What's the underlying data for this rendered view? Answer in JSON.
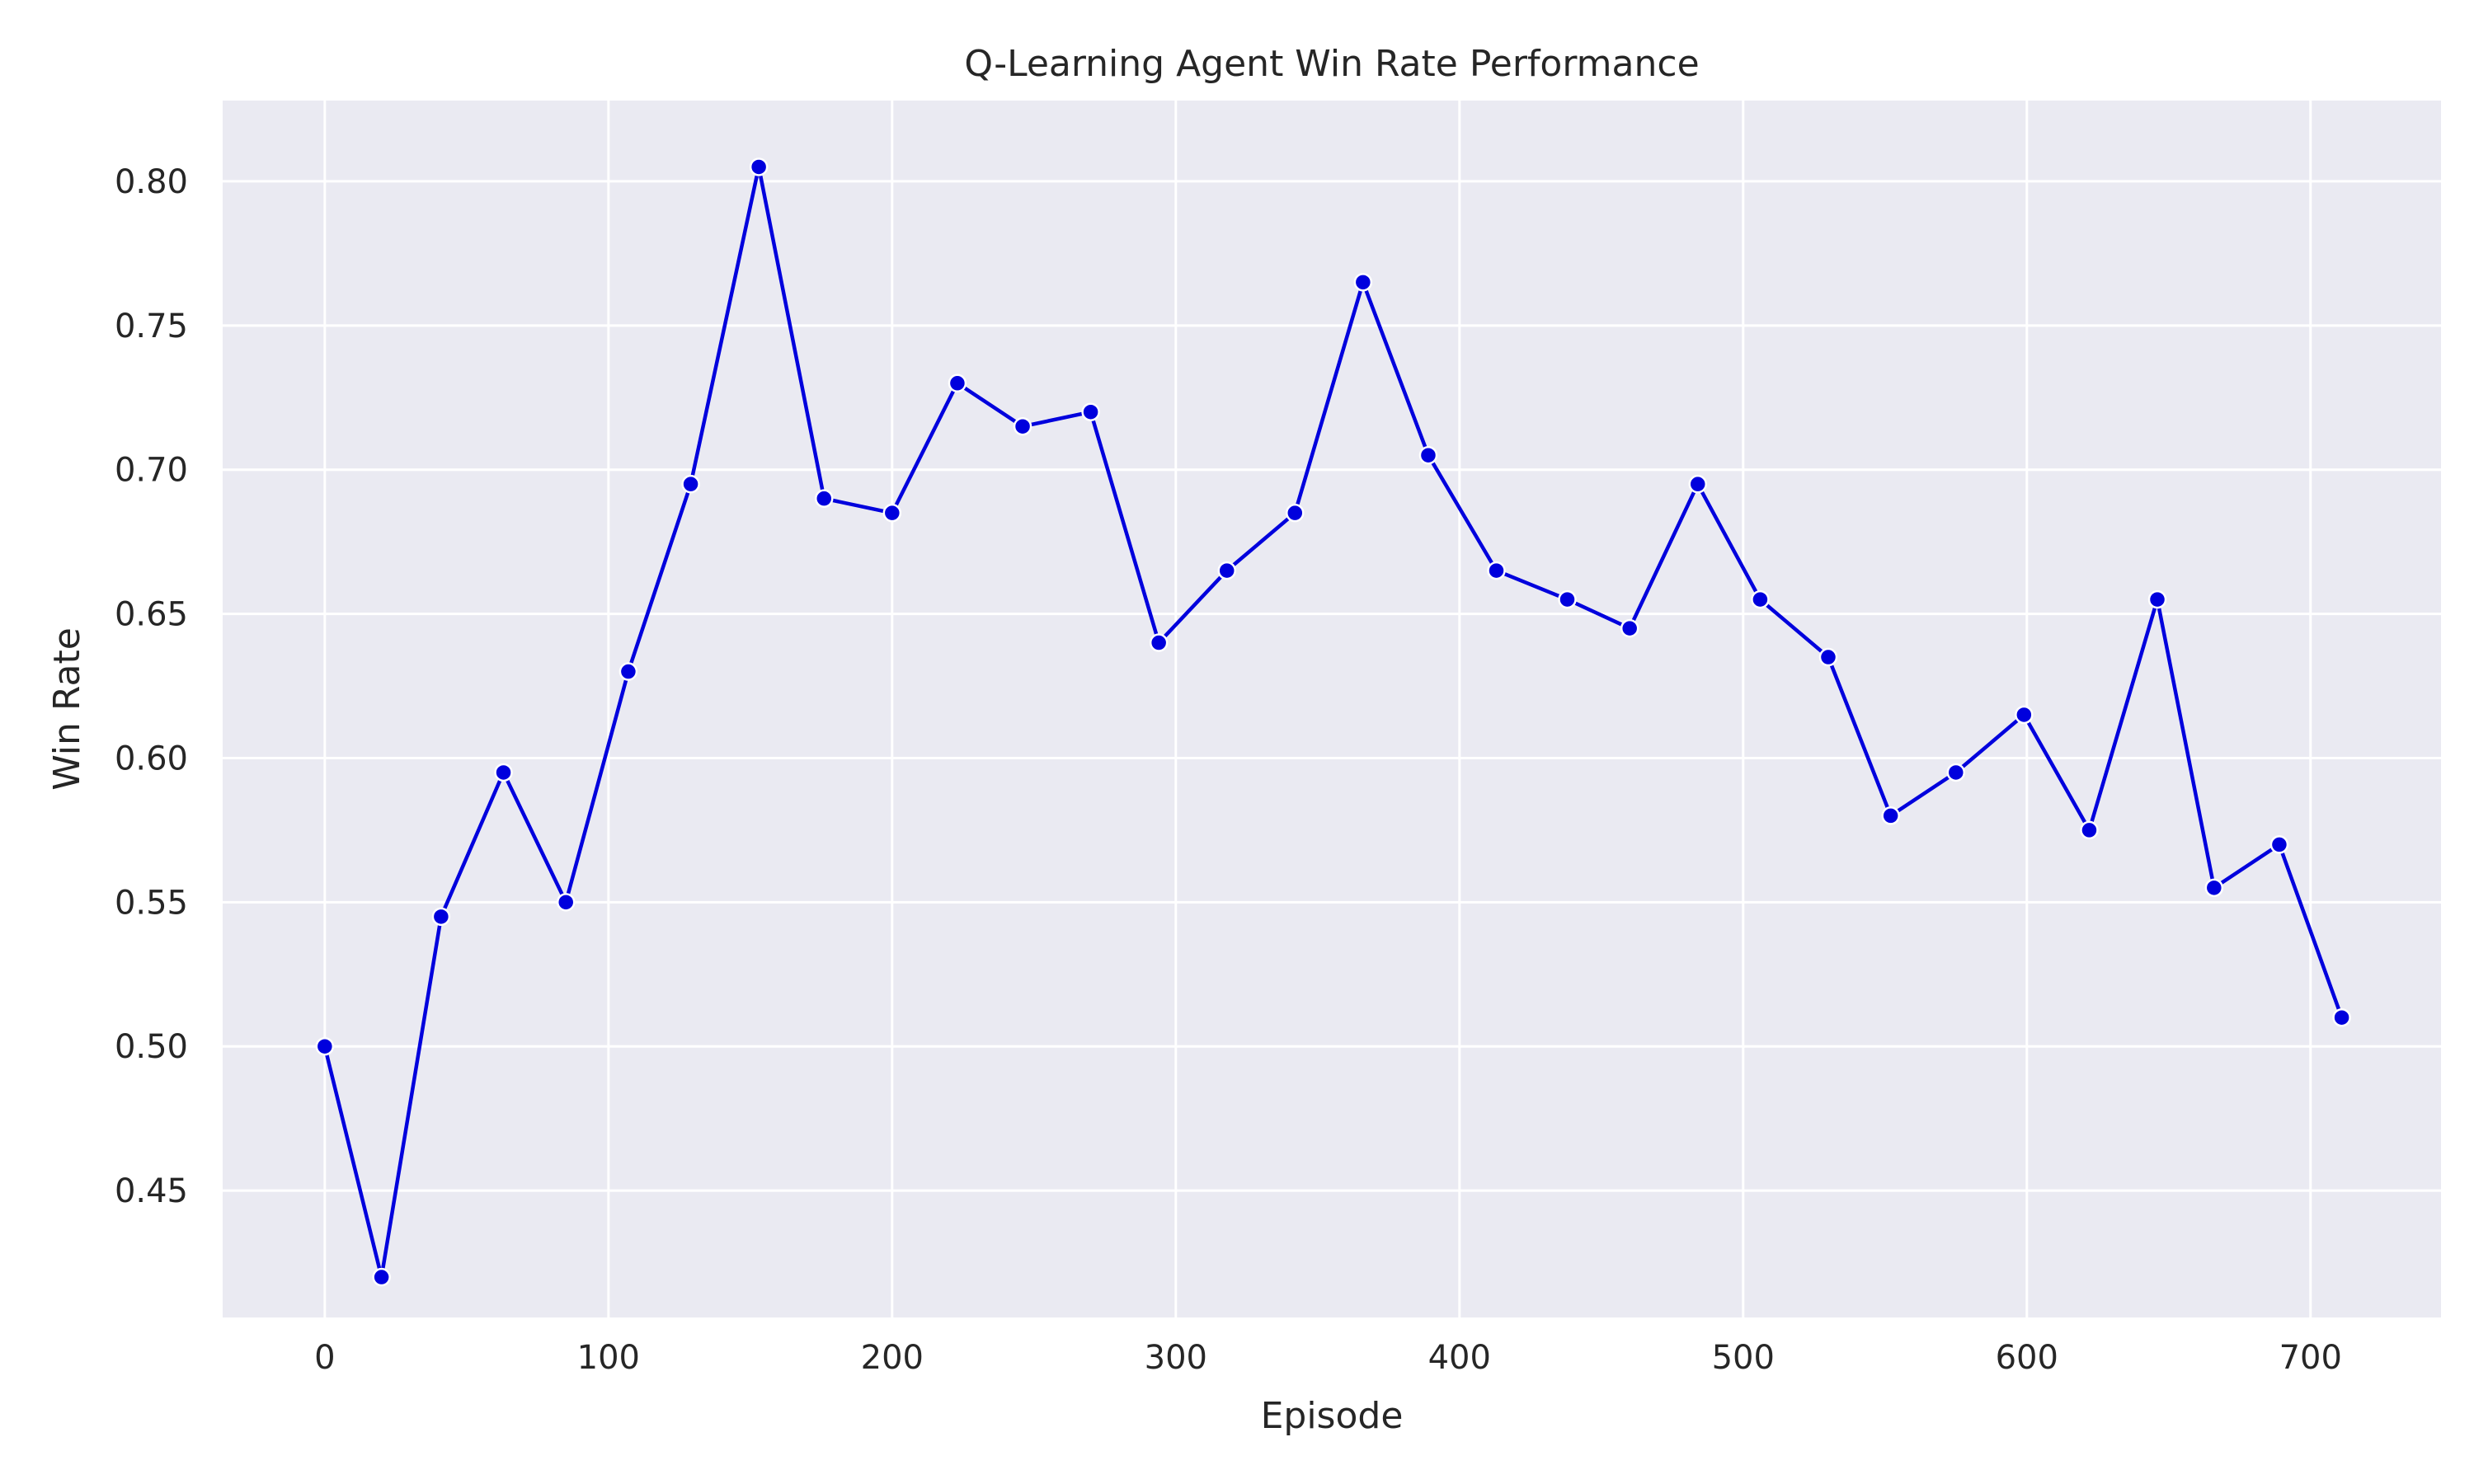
{
  "chart_data": {
    "type": "line",
    "title": "Q-Learning Agent Win Rate Performance",
    "xlabel": "Episode",
    "ylabel": "Win Rate",
    "xlim": [
      -36,
      746
    ],
    "ylim": [
      0.406,
      0.828
    ],
    "xticks": [
      0,
      100,
      200,
      300,
      400,
      500,
      600,
      700
    ],
    "xtick_labels": [
      "0",
      "100",
      "200",
      "300",
      "400",
      "500",
      "600",
      "700"
    ],
    "yticks": [
      0.45,
      0.5,
      0.55,
      0.6,
      0.65,
      0.7,
      0.75,
      0.8
    ],
    "ytick_labels": [
      "0.45",
      "0.50",
      "0.55",
      "0.60",
      "0.65",
      "0.70",
      "0.75",
      "0.80"
    ],
    "grid": true,
    "background": "#eaeaf2",
    "line_color": "#0000dd",
    "series": [
      {
        "x": [
          0,
          20,
          41,
          63,
          85,
          107,
          129,
          153,
          176,
          200,
          223,
          246,
          270,
          294,
          318,
          342,
          366,
          389,
          413,
          438,
          460,
          484,
          506,
          530,
          552,
          575,
          599,
          622,
          646,
          666,
          689,
          711
        ],
        "values": [
          0.5,
          0.42,
          0.545,
          0.595,
          0.55,
          0.63,
          0.695,
          0.805,
          0.69,
          0.685,
          0.73,
          0.715,
          0.72,
          0.64,
          0.665,
          0.685,
          0.765,
          0.705,
          0.665,
          0.655,
          0.645,
          0.695,
          0.655,
          0.635,
          0.58,
          0.595,
          0.615,
          0.575,
          0.655,
          0.555,
          0.57,
          0.51
        ]
      }
    ]
  }
}
